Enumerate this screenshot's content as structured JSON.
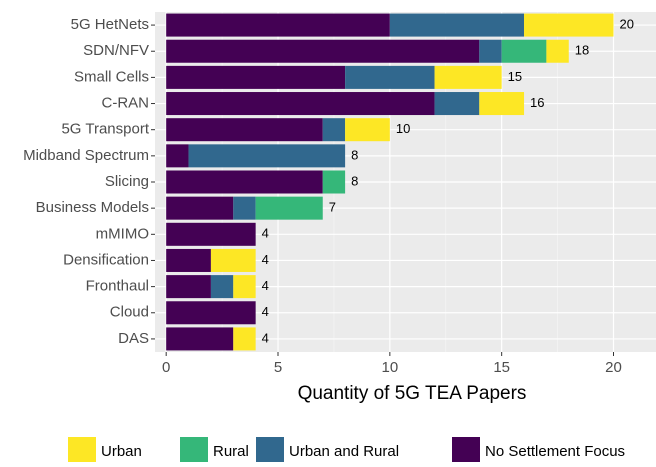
{
  "chart_data": {
    "type": "stacked-barh",
    "xlabel": "Quantity of 5G TEA Papers",
    "categories": [
      "5G HetNets",
      "SDN/NFV",
      "Small Cells",
      "C-RAN",
      "5G Transport",
      "Midband Spectrum",
      "Slicing",
      "Business Models",
      "mMIMO",
      "Densification",
      "Fronthaul",
      "Cloud",
      "DAS"
    ],
    "series": [
      {
        "name": "Urban",
        "color": "#FDE725",
        "values": [
          4,
          1,
          3,
          2,
          2,
          0,
          0,
          0,
          0,
          2,
          1,
          0,
          1
        ]
      },
      {
        "name": "Rural",
        "color": "#35B779",
        "values": [
          0,
          2,
          0,
          0,
          0,
          0,
          1,
          3,
          0,
          0,
          0,
          0,
          0
        ]
      },
      {
        "name": "Urban and Rural",
        "color": "#31688E",
        "values": [
          6,
          1,
          4,
          2,
          1,
          7,
          0,
          1,
          0,
          0,
          1,
          0,
          0
        ]
      },
      {
        "name": "No Settlement Focus",
        "color": "#440154",
        "values": [
          10,
          14,
          8,
          12,
          7,
          1,
          7,
          3,
          4,
          2,
          2,
          4,
          3
        ]
      }
    ],
    "totals": [
      20,
      18,
      15,
      16,
      10,
      8,
      8,
      7,
      4,
      4,
      4,
      4,
      4
    ],
    "xlim": [
      -0.5,
      21.9
    ],
    "xticks": [
      0,
      5,
      10,
      15,
      20
    ],
    "minor_xticks": [
      2.5,
      7.5,
      12.5,
      17.5
    ],
    "grid": true,
    "legend": "bottom"
  }
}
